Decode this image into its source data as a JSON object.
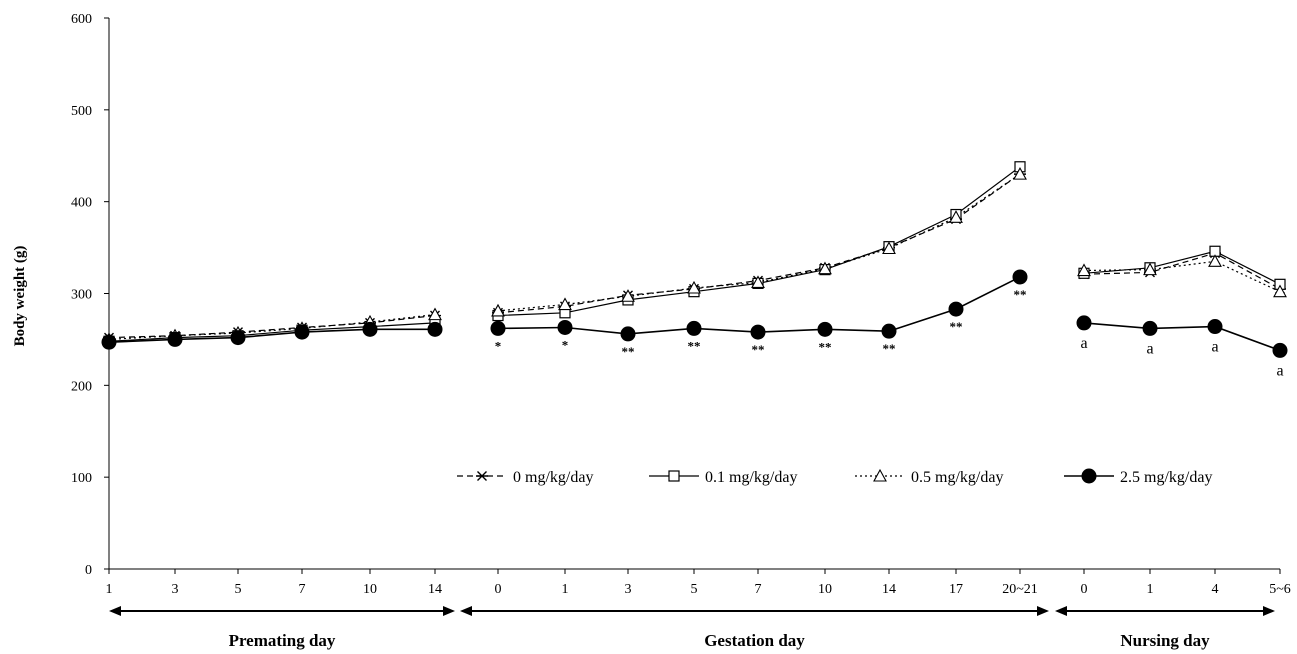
{
  "chart_data": {
    "type": "line",
    "ylabel": "Body weight (g)",
    "ylim": [
      0,
      600
    ],
    "yticks": [
      0,
      100,
      200,
      300,
      400,
      500,
      600
    ],
    "grid": false,
    "legend_position": "lower-right",
    "x_ticks": [
      "1",
      "3",
      "5",
      "7",
      "10",
      "14",
      "0",
      "1",
      "3",
      "5",
      "7",
      "10",
      "14",
      "17",
      "20~21",
      "0",
      "1",
      "4",
      "5~6"
    ],
    "phases": [
      {
        "label": "Premating day",
        "start": 0,
        "end": 5
      },
      {
        "label": "Gestation  day",
        "start": 6,
        "end": 14
      },
      {
        "label": "Nursing day",
        "start": 15,
        "end": 18
      }
    ],
    "series": [
      {
        "name": "0 mg/kg/day",
        "marker": "asterisk",
        "dash": "dashed",
        "values": [
          252,
          254,
          258,
          263,
          268,
          276,
          279,
          286,
          298,
          305,
          314,
          328,
          350,
          381,
          430,
          321,
          323,
          344,
          305
        ]
      },
      {
        "name": "0.1 mg/kg/day",
        "marker": "square",
        "dash": "solid",
        "values": [
          248,
          252,
          254,
          260,
          264,
          268,
          276,
          279,
          293,
          302,
          311,
          326,
          351,
          386,
          438,
          322,
          328,
          346,
          310
        ]
      },
      {
        "name": "0.5 mg/kg/day",
        "marker": "triangle",
        "dash": "dotted",
        "values": [
          250,
          254,
          257,
          262,
          269,
          277,
          281,
          288,
          297,
          306,
          312,
          327,
          349,
          383,
          430,
          325,
          326,
          335,
          302
        ]
      },
      {
        "name": "2.5 mg/kg/day",
        "marker": "circle",
        "dash": "solid",
        "values": [
          247,
          250,
          252,
          258,
          261,
          261,
          262,
          263,
          256,
          262,
          258,
          261,
          259,
          283,
          318,
          268,
          262,
          264,
          238
        ]
      }
    ],
    "annotations": [
      {
        "index": 6,
        "text": "*"
      },
      {
        "index": 7,
        "text": "*"
      },
      {
        "index": 8,
        "text": "**"
      },
      {
        "index": 9,
        "text": "**"
      },
      {
        "index": 10,
        "text": "**"
      },
      {
        "index": 11,
        "text": "**"
      },
      {
        "index": 12,
        "text": "**"
      },
      {
        "index": 13,
        "text": "**"
      },
      {
        "index": 14,
        "text": "**"
      },
      {
        "index": 15,
        "text": "a"
      },
      {
        "index": 16,
        "text": "a"
      },
      {
        "index": 17,
        "text": "a"
      },
      {
        "index": 18,
        "text": "a"
      }
    ]
  }
}
